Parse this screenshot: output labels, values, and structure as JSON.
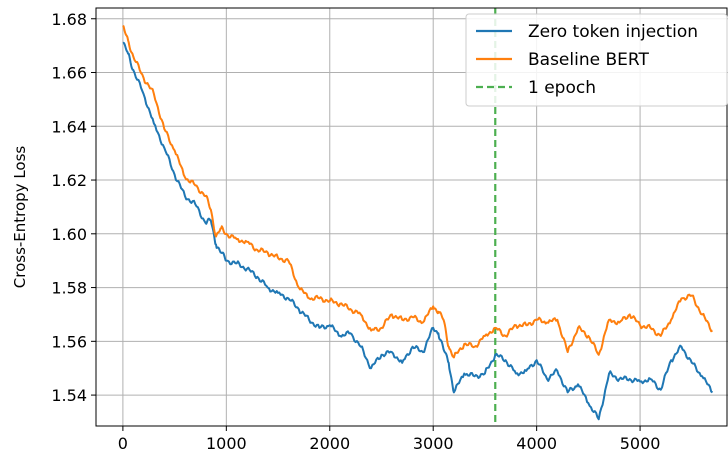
{
  "chart_data": {
    "type": "line",
    "title": "",
    "xlabel": "",
    "ylabel": "Cross-Entropy Loss",
    "xlim": [
      -260,
      5850
    ],
    "ylim": [
      1.5285,
      1.684
    ],
    "xticks": [
      0,
      1000,
      2000,
      3000,
      4000,
      5000
    ],
    "yticks": [
      1.54,
      1.56,
      1.58,
      1.6,
      1.62,
      1.64,
      1.66,
      1.68
    ],
    "ytick_labels": [
      "1.54",
      "1.56",
      "1.58",
      "1.60",
      "1.62",
      "1.64",
      "1.66",
      "1.68"
    ],
    "grid": true,
    "legend_position": "top-right",
    "series": [
      {
        "name": "Zero token injection",
        "color": "#1f77b4",
        "style": "solid",
        "x": [
          0,
          50,
          100,
          200,
          300,
          400,
          500,
          600,
          700,
          800,
          850,
          900,
          950,
          1000,
          1100,
          1200,
          1300,
          1400,
          1500,
          1600,
          1700,
          1800,
          1900,
          2000,
          2100,
          2200,
          2300,
          2400,
          2500,
          2600,
          2700,
          2800,
          2900,
          3000,
          3050,
          3100,
          3150,
          3200,
          3300,
          3400,
          3500,
          3600,
          3700,
          3800,
          3900,
          4000,
          4100,
          4200,
          4300,
          4400,
          4500,
          4600,
          4700,
          4800,
          4900,
          5000,
          5100,
          5200,
          5300,
          5400,
          5500,
          5600,
          5700
        ],
        "y": [
          1.671,
          1.667,
          1.661,
          1.652,
          1.641,
          1.632,
          1.622,
          1.614,
          1.611,
          1.604,
          1.605,
          1.596,
          1.593,
          1.59,
          1.589,
          1.587,
          1.584,
          1.58,
          1.578,
          1.576,
          1.572,
          1.568,
          1.565,
          1.566,
          1.562,
          1.563,
          1.558,
          1.55,
          1.555,
          1.556,
          1.552,
          1.558,
          1.556,
          1.565,
          1.563,
          1.557,
          1.552,
          1.541,
          1.548,
          1.547,
          1.548,
          1.555,
          1.553,
          1.548,
          1.549,
          1.553,
          1.546,
          1.549,
          1.541,
          1.544,
          1.537,
          1.531,
          1.548,
          1.546,
          1.546,
          1.545,
          1.546,
          1.542,
          1.553,
          1.558,
          1.552,
          1.547,
          1.541
        ]
      },
      {
        "name": "Baseline BERT",
        "color": "#ff7f0e",
        "style": "solid",
        "x": [
          0,
          50,
          100,
          200,
          300,
          400,
          500,
          600,
          700,
          800,
          850,
          900,
          950,
          1000,
          1100,
          1200,
          1300,
          1400,
          1500,
          1600,
          1700,
          1800,
          1900,
          2000,
          2100,
          2200,
          2300,
          2400,
          2500,
          2600,
          2700,
          2800,
          2900,
          3000,
          3050,
          3100,
          3150,
          3200,
          3300,
          3400,
          3500,
          3600,
          3700,
          3800,
          3900,
          4000,
          4100,
          4200,
          4300,
          4400,
          4500,
          4600,
          4700,
          4800,
          4900,
          5000,
          5100,
          5200,
          5300,
          5400,
          5500,
          5600,
          5700
        ],
        "y": [
          1.677,
          1.672,
          1.666,
          1.658,
          1.652,
          1.639,
          1.631,
          1.621,
          1.618,
          1.614,
          1.609,
          1.599,
          1.602,
          1.6,
          1.598,
          1.597,
          1.594,
          1.593,
          1.591,
          1.59,
          1.58,
          1.576,
          1.576,
          1.575,
          1.574,
          1.572,
          1.57,
          1.564,
          1.565,
          1.57,
          1.568,
          1.569,
          1.567,
          1.573,
          1.571,
          1.568,
          1.558,
          1.554,
          1.559,
          1.558,
          1.562,
          1.565,
          1.562,
          1.566,
          1.566,
          1.568,
          1.567,
          1.568,
          1.556,
          1.565,
          1.562,
          1.555,
          1.568,
          1.567,
          1.57,
          1.566,
          1.565,
          1.562,
          1.568,
          1.576,
          1.577,
          1.57,
          1.564
        ]
      }
    ],
    "annotations": [
      {
        "name": "1 epoch",
        "type": "vline",
        "x": 3600,
        "color": "#4caf50",
        "style": "dashed"
      }
    ]
  }
}
